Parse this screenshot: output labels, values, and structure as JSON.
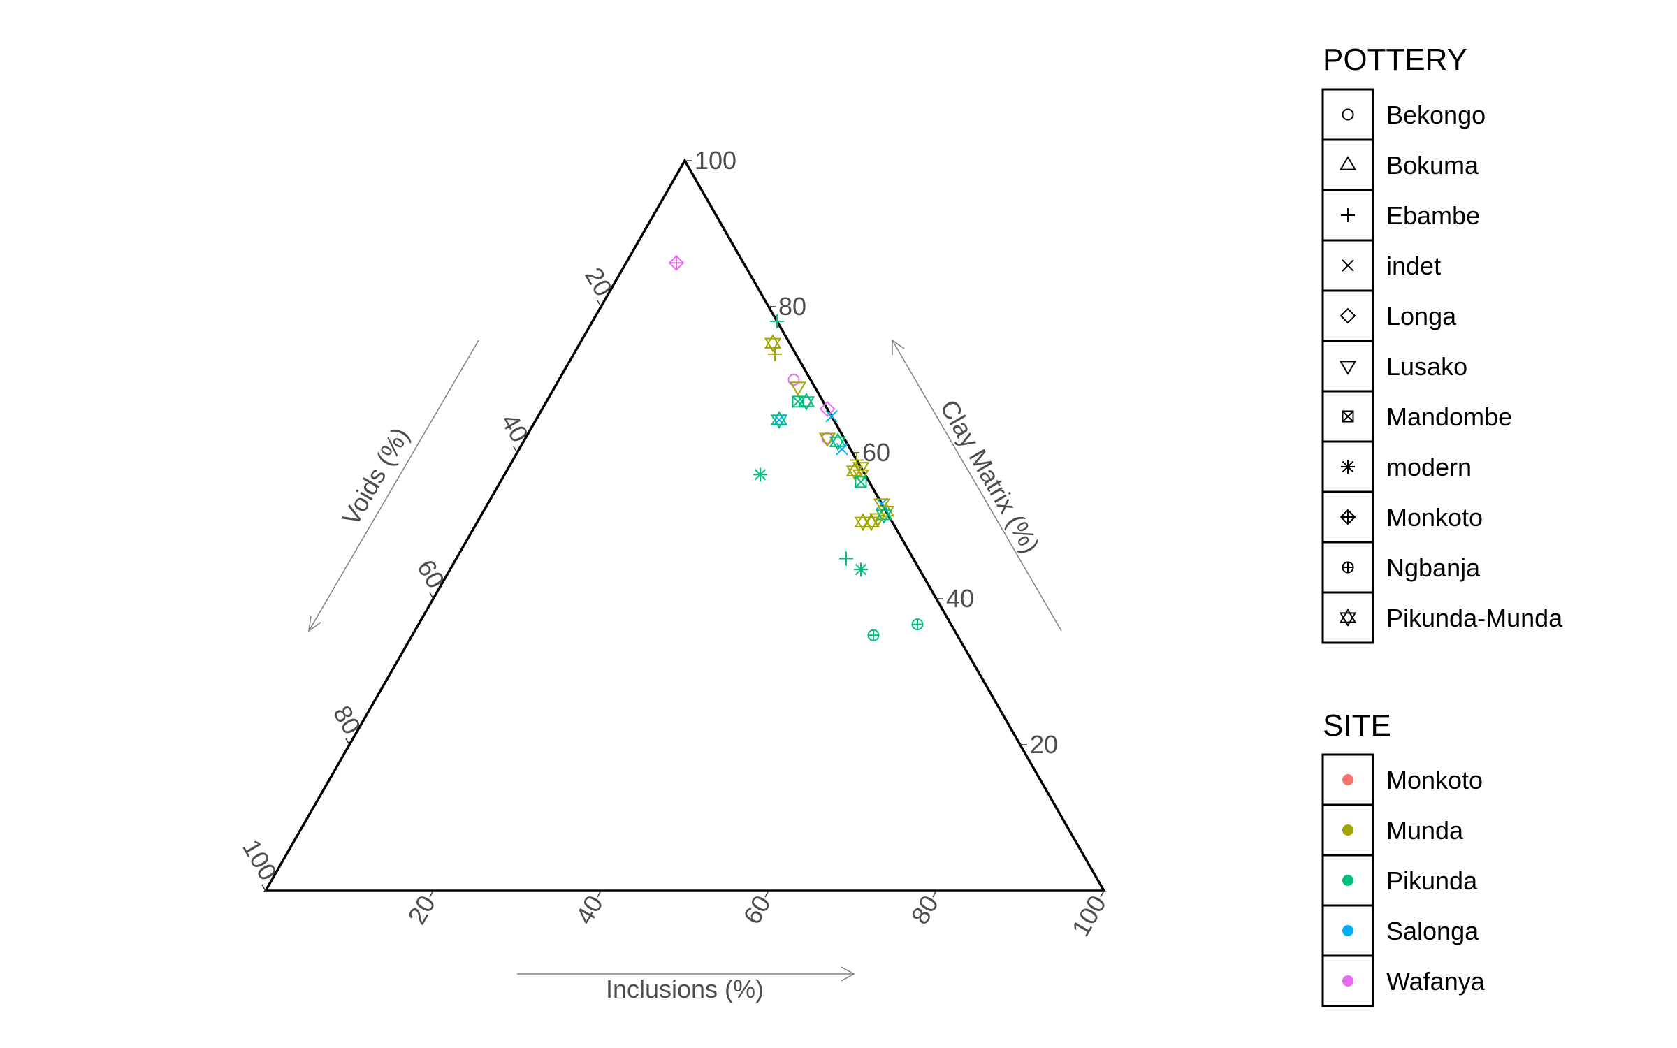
{
  "chart_data": {
    "type": "scatter",
    "subtype": "ternary",
    "axes": {
      "top": {
        "label": "Clay Matrix (%)",
        "ticks": [
          20,
          40,
          60,
          80,
          100
        ]
      },
      "left": {
        "label": "Voids (%)",
        "ticks": [
          20,
          40,
          60,
          80,
          100
        ]
      },
      "right": {
        "label": "Inclusions (%)",
        "ticks": [
          20,
          40,
          60,
          80,
          100
        ]
      }
    },
    "legend_pottery": {
      "title": "POTTERY",
      "items": [
        {
          "label": "Bekongo",
          "shape": "circle"
        },
        {
          "label": "Bokuma",
          "shape": "triangle-up"
        },
        {
          "label": "Ebambe",
          "shape": "plus"
        },
        {
          "label": "indet",
          "shape": "cross"
        },
        {
          "label": "Longa",
          "shape": "diamond"
        },
        {
          "label": "Lusako",
          "shape": "triangle-down"
        },
        {
          "label": "Mandombe",
          "shape": "square-cross"
        },
        {
          "label": "modern",
          "shape": "asterisk"
        },
        {
          "label": "Monkoto",
          "shape": "diamond-plus"
        },
        {
          "label": "Ngbanja",
          "shape": "circle-plus"
        },
        {
          "label": "Pikunda-Munda",
          "shape": "star-david"
        }
      ]
    },
    "legend_site": {
      "title": "SITE",
      "items": [
        {
          "label": "Monkoto",
          "color": "#F8766D"
        },
        {
          "label": "Munda",
          "color": "#A3A500"
        },
        {
          "label": "Pikunda",
          "color": "#00BF7D"
        },
        {
          "label": "Salonga",
          "color": "#00B0F6"
        },
        {
          "label": "Wafanya",
          "color": "#E76BF3"
        }
      ]
    },
    "points": [
      {
        "clay": 86,
        "voids": 8,
        "inclusions": 6,
        "pottery": "Monkoto",
        "site": "Wafanya"
      },
      {
        "clay": 78,
        "voids": 0,
        "inclusions": 22,
        "pottery": "Ebambe",
        "site": "Pikunda"
      },
      {
        "clay": 75,
        "voids": 2,
        "inclusions": 23,
        "pottery": "Pikunda-Munda",
        "site": "Munda"
      },
      {
        "clay": 73.5,
        "voids": 2.5,
        "inclusions": 24,
        "pottery": "Ebambe",
        "site": "Munda"
      },
      {
        "clay": 70,
        "voids": 2,
        "inclusions": 28,
        "pottery": "Bekongo",
        "site": "Wafanya"
      },
      {
        "clay": 69,
        "voids": 2,
        "inclusions": 29,
        "pottery": "Lusako",
        "site": "Munda"
      },
      {
        "clay": 67,
        "voids": 2,
        "inclusions": 31,
        "pottery": "Pikunda-Munda",
        "site": "Pikunda"
      },
      {
        "clay": 67,
        "voids": 3,
        "inclusions": 30,
        "pottery": "Mandombe",
        "site": "Pikunda"
      },
      {
        "clay": 66,
        "voids": 0,
        "inclusions": 34,
        "pottery": "Longa",
        "site": "Wafanya"
      },
      {
        "clay": 65,
        "voids": 0,
        "inclusions": 35,
        "pottery": "indet",
        "site": "Salonga"
      },
      {
        "clay": 64.5,
        "voids": 6.5,
        "inclusions": 29,
        "pottery": "Pikunda-Munda",
        "site": "Pikunda"
      },
      {
        "clay": 64.5,
        "voids": 6.5,
        "inclusions": 29,
        "pottery": "indet",
        "site": "Salonga"
      },
      {
        "clay": 62,
        "voids": 2,
        "inclusions": 36,
        "pottery": "Bekongo",
        "site": "Wafanya"
      },
      {
        "clay": 62,
        "voids": 2,
        "inclusions": 36,
        "pottery": "Lusako",
        "site": "Munda"
      },
      {
        "clay": 61.5,
        "voids": 1,
        "inclusions": 37.5,
        "pottery": "Pikunda-Munda",
        "site": "Pikunda"
      },
      {
        "clay": 60.5,
        "voids": 1,
        "inclusions": 38.5,
        "pottery": "indet",
        "site": "Salonga"
      },
      {
        "clay": 59,
        "voids": 0,
        "inclusions": 41,
        "pottery": "Ebambe",
        "site": "Munda"
      },
      {
        "clay": 58,
        "voids": 0,
        "inclusions": 42,
        "pottery": "Lusako",
        "site": "Munda"
      },
      {
        "clay": 57.5,
        "voids": 1,
        "inclusions": 41.5,
        "pottery": "Pikunda-Munda",
        "site": "Munda"
      },
      {
        "clay": 57,
        "voids": 0.5,
        "inclusions": 42.5,
        "pottery": "Lusako",
        "site": "Munda"
      },
      {
        "clay": 56,
        "voids": 1,
        "inclusions": 43,
        "pottery": "Mandombe",
        "site": "Pikunda"
      },
      {
        "clay": 57,
        "voids": 12.5,
        "inclusions": 30.5,
        "pottery": "modern",
        "site": "Pikunda"
      },
      {
        "clay": 53,
        "voids": 0,
        "inclusions": 47,
        "pottery": "indet",
        "site": "Salonga"
      },
      {
        "clay": 53,
        "voids": 0,
        "inclusions": 47,
        "pottery": "Lusako",
        "site": "Munda"
      },
      {
        "clay": 52,
        "voids": 0,
        "inclusions": 48,
        "pottery": "Pikunda-Munda",
        "site": "Munda"
      },
      {
        "clay": 51.5,
        "voids": 0.5,
        "inclusions": 48,
        "pottery": "Pikunda-Munda",
        "site": "Pikunda"
      },
      {
        "clay": 51,
        "voids": 1.5,
        "inclusions": 47.5,
        "pottery": "Lusako",
        "site": "Munda"
      },
      {
        "clay": 50.5,
        "voids": 3.5,
        "inclusions": 46,
        "pottery": "Pikunda-Munda",
        "site": "Munda"
      },
      {
        "clay": 50.5,
        "voids": 2.5,
        "inclusions": 47,
        "pottery": "Pikunda-Munda",
        "site": "Munda"
      },
      {
        "clay": 45.5,
        "voids": 8,
        "inclusions": 46.5,
        "pottery": "Ebambe",
        "site": "Pikunda"
      },
      {
        "clay": 44,
        "voids": 7,
        "inclusions": 49,
        "pottery": "modern",
        "site": "Pikunda"
      },
      {
        "clay": 35,
        "voids": 10,
        "inclusions": 55,
        "pottery": "Ngbanja",
        "site": "Pikunda"
      },
      {
        "clay": 36.5,
        "voids": 4,
        "inclusions": 59.5,
        "pottery": "Ngbanja",
        "site": "Pikunda"
      }
    ]
  }
}
